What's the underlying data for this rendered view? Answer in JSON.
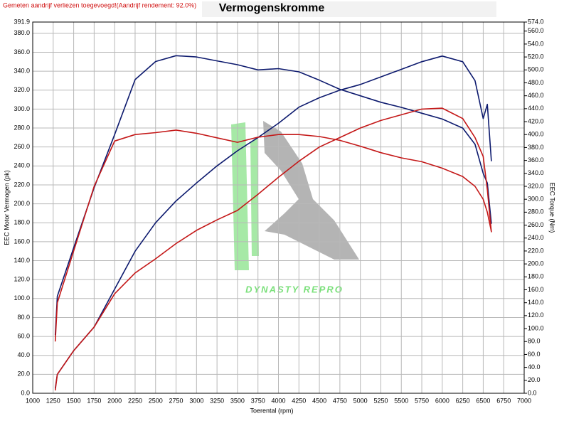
{
  "chart_data": {
    "type": "line",
    "title": "Vermogenskromme",
    "note": "Gemeten aandrijf verliezen toegevoegd!(Aandrijf rendement: 92.0%)",
    "watermark": "DYNASTY REPRO",
    "xlabel": "Toerental (rpm)",
    "ylabel": "EEC Motor Vermogen (pk)",
    "y2label": "EEC Torque (Nm)",
    "grid": true,
    "xlim": [
      1000,
      7000
    ],
    "xticks": [
      1000,
      1250,
      1500,
      1750,
      2000,
      2250,
      2500,
      2750,
      3000,
      3250,
      3500,
      3750,
      4000,
      4250,
      4500,
      4750,
      5000,
      5250,
      5500,
      5750,
      6000,
      6250,
      6500,
      6750,
      7000
    ],
    "ylim": [
      0,
      391.9
    ],
    "yticks": [
      {
        "value": 0,
        "label": "0.0"
      },
      {
        "value": 20,
        "label": "20.0"
      },
      {
        "value": 40,
        "label": "40.0"
      },
      {
        "value": 60,
        "label": "60.0"
      },
      {
        "value": 80,
        "label": "80.0"
      },
      {
        "value": 100,
        "label": "100.0"
      },
      {
        "value": 120,
        "label": "120.0"
      },
      {
        "value": 140,
        "label": "140.0"
      },
      {
        "value": 160,
        "label": "160.0"
      },
      {
        "value": 180,
        "label": "180.0"
      },
      {
        "value": 200,
        "label": "200.0"
      },
      {
        "value": 220,
        "label": "220.0"
      },
      {
        "value": 240,
        "label": "240.0"
      },
      {
        "value": 260,
        "label": "260.0"
      },
      {
        "value": 280,
        "label": "280.0"
      },
      {
        "value": 300,
        "label": "300.0"
      },
      {
        "value": 320,
        "label": "320.0"
      },
      {
        "value": 340,
        "label": "340.0"
      },
      {
        "value": 360,
        "label": "360.0"
      },
      {
        "value": 380,
        "label": "380.0"
      },
      391.9
    ],
    "y2lim": [
      0,
      574
    ],
    "y2ticks": [
      {
        "value": 0,
        "label": "0.0"
      },
      {
        "value": 20,
        "label": "20.0"
      },
      {
        "value": 40,
        "label": "40.0"
      },
      {
        "value": 60,
        "label": "60.0"
      },
      {
        "value": 80,
        "label": "80.0"
      },
      {
        "value": 100,
        "label": "100.0"
      },
      {
        "value": 120,
        "label": "120.0"
      },
      {
        "value": 140,
        "label": "140.0"
      },
      {
        "value": 160,
        "label": "160.0"
      },
      {
        "value": 180,
        "label": "180.0"
      },
      {
        "value": 200,
        "label": "200.0"
      },
      {
        "value": 220,
        "label": "220.0"
      },
      {
        "value": 240,
        "label": "240.0"
      },
      {
        "value": 260,
        "label": "260.0"
      },
      {
        "value": 280,
        "label": "280.0"
      },
      {
        "value": 300,
        "label": "300.0"
      },
      {
        "value": 320,
        "label": "320.0"
      },
      {
        "value": 340,
        "label": "340.0"
      },
      {
        "value": 360,
        "label": "360.0"
      },
      {
        "value": 380,
        "label": "380.0"
      },
      {
        "value": 400,
        "label": "400.0"
      },
      {
        "value": 420,
        "label": "420.0"
      },
      {
        "value": 440,
        "label": "440.0"
      },
      {
        "value": 460,
        "label": "460.0"
      },
      {
        "value": 480,
        "label": "480.0"
      },
      {
        "value": 500,
        "label": "500.0"
      },
      {
        "value": 520,
        "label": "520.0"
      },
      {
        "value": 540,
        "label": "540.0"
      },
      {
        "value": 560,
        "label": "560.0"
      },
      {
        "value": 574,
        "label": "574.0"
      }
    ],
    "x": [
      1275,
      1300,
      1500,
      1750,
      2000,
      2250,
      2500,
      2750,
      3000,
      3250,
      3500,
      3750,
      4000,
      4250,
      4500,
      4750,
      5000,
      5250,
      5500,
      5750,
      6000,
      6250,
      6400,
      6500,
      6550,
      6600
    ],
    "series": [
      {
        "color": "#0d1a6e",
        "axis": "y2",
        "values": [
          90,
          150,
          225,
          318,
          400,
          485,
          513,
          522,
          520,
          514,
          508,
          500,
          502,
          497,
          484,
          470,
          460,
          450,
          442,
          433,
          424,
          410,
          385,
          340,
          325,
          262
        ]
      },
      {
        "color": "#0d1a6e",
        "values": [
          5,
          20,
          45,
          70,
          110,
          150,
          180,
          203,
          222,
          240,
          256,
          270,
          285,
          302,
          312,
          320,
          326,
          334,
          342,
          350,
          356,
          350,
          330,
          290,
          305,
          245
        ]
      },
      {
        "color": "#c41818",
        "axis": "y2",
        "values": [
          80,
          140,
          220,
          320,
          390,
          400,
          403,
          407,
          402,
          395,
          388,
          396,
          400,
          400,
          397,
          391,
          382,
          372,
          364,
          358,
          348,
          335,
          320,
          300,
          280,
          250
        ]
      },
      {
        "color": "#c41818",
        "values": [
          3,
          20,
          45,
          70,
          105,
          127,
          142,
          158,
          172,
          183,
          193,
          210,
          228,
          245,
          260,
          270,
          280,
          288,
          294,
          300,
          301,
          290,
          270,
          250,
          215,
          170
        ]
      }
    ]
  }
}
